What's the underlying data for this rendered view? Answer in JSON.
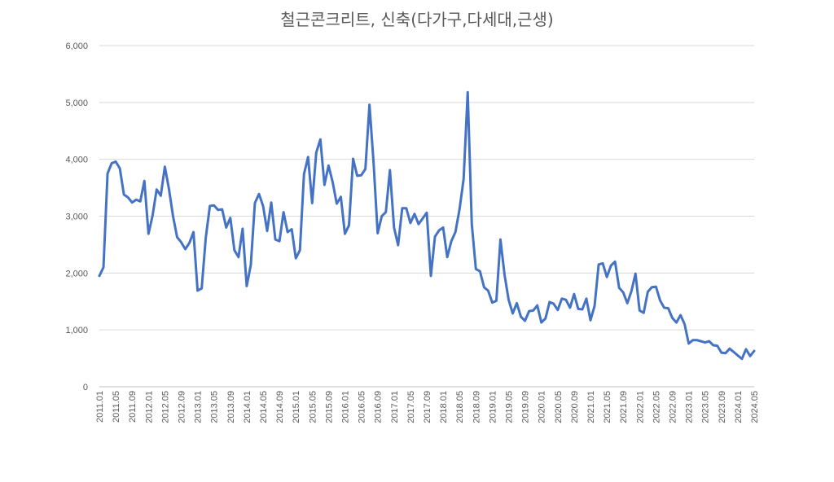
{
  "chart_data": {
    "type": "line",
    "title": "철근콘크리트, 신축(다가구,다세대,근생)",
    "xlabel": "",
    "ylabel": "",
    "ylim": [
      0,
      6000
    ],
    "yticks": [
      "0",
      "1,000",
      "2,000",
      "3,000",
      "4,000",
      "5,000",
      "6,000"
    ],
    "grid": true,
    "legend": "none",
    "line_color": "#4472C4",
    "x_tick_labels": [
      "2011.01",
      "2011.05",
      "2011.09",
      "2012.01",
      "2012.05",
      "2012.09",
      "2013.01",
      "2013.05",
      "2013.09",
      "2014.01",
      "2014.05",
      "2014.09",
      "2015.01",
      "2015.05",
      "2015.09",
      "2016.01",
      "2016.05",
      "2016.09",
      "2017.01",
      "2017.05",
      "2017.09",
      "2018.01",
      "2018.05",
      "2018.09",
      "2019.01",
      "2019.05",
      "2019.09",
      "2020.01",
      "2020.05",
      "2020.09",
      "2021.01",
      "2021.05",
      "2021.09",
      "2022.01",
      "2022.05",
      "2022.09",
      "2023.01",
      "2023.05",
      "2023.09",
      "2024.01",
      "2024.05"
    ],
    "start_month": "2011.01",
    "series": [
      {
        "values": [
          1950,
          2100,
          3750,
          3930,
          3960,
          3840,
          3380,
          3330,
          3240,
          3290,
          3260,
          3620,
          2690,
          3010,
          3470,
          3360,
          3870,
          3480,
          3000,
          2630,
          2540,
          2420,
          2530,
          2720,
          1690,
          1730,
          2620,
          3180,
          3190,
          3110,
          3120,
          2800,
          2970,
          2400,
          2280,
          2780,
          1770,
          2140,
          3230,
          3390,
          3180,
          2740,
          3240,
          2590,
          2560,
          3070,
          2720,
          2770,
          2260,
          2400,
          3740,
          4040,
          3230,
          4120,
          4350,
          3550,
          3890,
          3600,
          3220,
          3340,
          2690,
          2840,
          4010,
          3710,
          3720,
          3830,
          4960,
          3940,
          2700,
          3000,
          3070,
          3810,
          2800,
          2490,
          3140,
          3140,
          2880,
          3040,
          2860,
          2960,
          3060,
          1950,
          2640,
          2750,
          2800,
          2280,
          2560,
          2720,
          3120,
          3650,
          5180,
          2860,
          2070,
          2030,
          1750,
          1690,
          1480,
          1510,
          2590,
          1970,
          1530,
          1290,
          1470,
          1230,
          1160,
          1330,
          1340,
          1430,
          1130,
          1200,
          1490,
          1460,
          1350,
          1550,
          1530,
          1390,
          1630,
          1370,
          1360,
          1550,
          1170,
          1420,
          2150,
          2170,
          1930,
          2130,
          2200,
          1740,
          1660,
          1470,
          1680,
          1990,
          1340,
          1300,
          1670,
          1750,
          1760,
          1520,
          1390,
          1380,
          1210,
          1130,
          1260,
          1100,
          760,
          820,
          820,
          800,
          780,
          800,
          730,
          720,
          600,
          590,
          670,
          610,
          550,
          490,
          660,
          540,
          630
        ]
      }
    ]
  }
}
